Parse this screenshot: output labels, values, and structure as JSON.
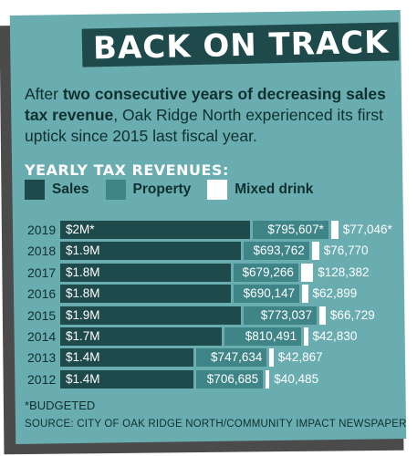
{
  "headline": "BACK ON TRACK",
  "intro": {
    "prefix": "After ",
    "bold": "two consecutive years of decreasing sales tax revenue",
    "suffix": ", Oak Ridge North experienced its first uptick since 2015 last fiscal year."
  },
  "section_title": "YEARLY TAX REVENUES:",
  "legend": [
    {
      "label": "Sales",
      "color": "#1f4a4c"
    },
    {
      "label": "Property",
      "color": "#3f8588"
    },
    {
      "label": "Mixed drink",
      "color": "#ffffff"
    }
  ],
  "chart_data": {
    "type": "bar",
    "orientation": "horizontal",
    "stacked": true,
    "categories": [
      "2019",
      "2018",
      "2017",
      "2016",
      "2015",
      "2014",
      "2013",
      "2012"
    ],
    "series": [
      {
        "name": "Sales",
        "values": [
          2000000,
          1900000,
          1800000,
          1800000,
          1900000,
          1700000,
          1400000,
          1400000
        ],
        "labels": [
          "$2M*",
          "$1.9M",
          "$1.8M",
          "$1.8M",
          "$1.9M",
          "$1.7M",
          "$1.4M",
          "$1.4M"
        ]
      },
      {
        "name": "Property",
        "values": [
          795607,
          693762,
          679266,
          690147,
          773037,
          810491,
          747634,
          706685
        ],
        "labels": [
          "$795,607*",
          "$693,762",
          "$679,266",
          "$690,147",
          "$773,037",
          "$810,491",
          "$747,634",
          "$706,685"
        ]
      },
      {
        "name": "Mixed drink",
        "values": [
          77046,
          76770,
          128382,
          62899,
          66729,
          42830,
          42867,
          40485
        ],
        "labels": [
          "$77,046*",
          "$76,770",
          "$128,382",
          "$62,899",
          "$66,729",
          "$42,830",
          "$42,867",
          "$40,485"
        ]
      }
    ]
  },
  "footnote": "*BUDGETED",
  "source": "SOURCE: CITY OF OAK RIDGE NORTH/COMMUNITY IMPACT NEWSPAPER"
}
